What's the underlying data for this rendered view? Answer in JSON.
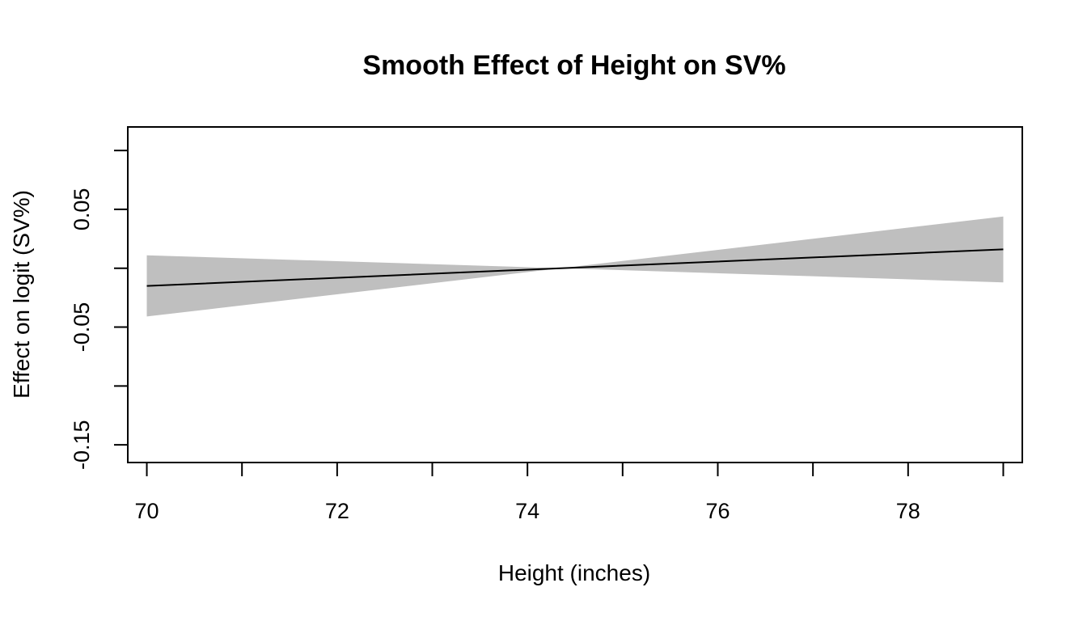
{
  "chart_data": {
    "type": "line",
    "title": "Smooth Effect of Height on SV%",
    "xlabel": "Height (inches)",
    "ylabel": "Effect on logit (SV%)",
    "xlim": [
      69.8,
      79.2
    ],
    "ylim": [
      -0.165,
      0.12
    ],
    "x_ticks": [
      70,
      71,
      72,
      73,
      74,
      75,
      76,
      77,
      78,
      79
    ],
    "x_tick_labels": [
      "70",
      "72",
      "74",
      "76",
      "78"
    ],
    "x_tick_label_values": [
      70,
      72,
      74,
      76,
      78
    ],
    "y_ticks": [
      -0.15,
      -0.1,
      -0.05,
      0.0,
      0.05,
      0.1
    ],
    "y_tick_labels": [
      "-0.15",
      "-0.05",
      "0.05"
    ],
    "y_tick_label_values": [
      -0.15,
      -0.05,
      0.05
    ],
    "grid": false,
    "colors": {
      "band": "#bfbfbf",
      "line": "#000000"
    },
    "series": [
      {
        "x": [
          70,
          74.35,
          79
        ],
        "y": [
          -0.015,
          0.0,
          0.016
        ],
        "lower": [
          -0.041,
          0.0,
          -0.012
        ],
        "upper": [
          0.011,
          0.0,
          0.044
        ]
      }
    ]
  }
}
